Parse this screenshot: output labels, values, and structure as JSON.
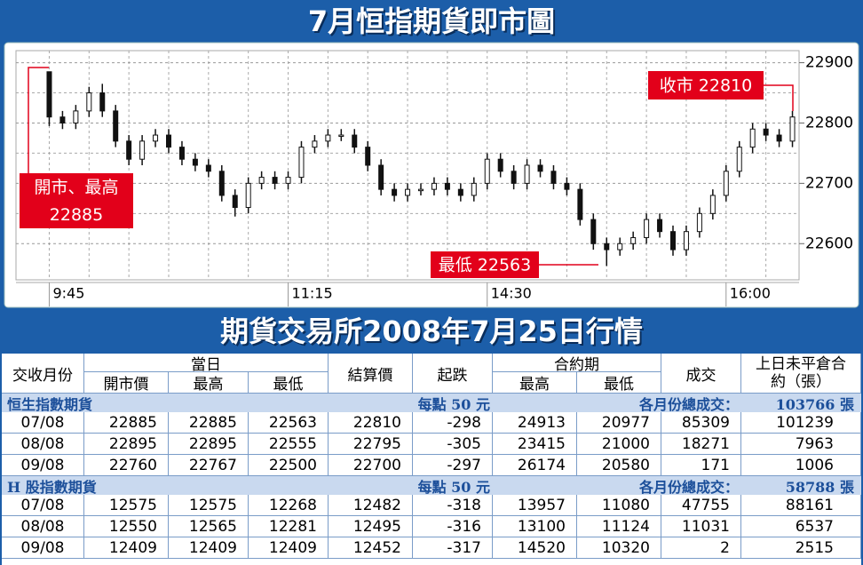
{
  "chart_data": {
    "type": "candlestick",
    "title": "7月恒指期貨即市圖",
    "categories": [
      "9:45",
      null,
      null,
      null,
      null,
      null,
      null,
      null,
      null,
      null,
      null,
      null,
      null,
      null,
      null,
      null,
      null,
      null,
      "11:15",
      null,
      null,
      null,
      null,
      null,
      null,
      null,
      null,
      null,
      null,
      null,
      null,
      null,
      null,
      "14:30",
      null,
      null,
      null,
      null,
      null,
      null,
      null,
      null,
      null,
      null,
      null,
      null,
      null,
      null,
      null,
      null,
      null,
      "16:00",
      null,
      null,
      null,
      null,
      null
    ],
    "open": [
      22885,
      22810,
      22800,
      22820,
      22850,
      22820,
      22770,
      22740,
      22770,
      22780,
      22760,
      22740,
      22730,
      22720,
      22680,
      22660,
      22700,
      22710,
      22700,
      22710,
      22760,
      22770,
      22780,
      22780,
      22760,
      22730,
      22690,
      22680,
      22690,
      22690,
      22700,
      22690,
      22680,
      22700,
      22740,
      22720,
      22700,
      22730,
      22720,
      22700,
      22690,
      22640,
      22600,
      22590,
      22600,
      22610,
      22640,
      22620,
      22590,
      22620,
      22650,
      22680,
      22720,
      22760,
      22790,
      22780,
      22770
    ],
    "high": [
      22885,
      22820,
      22830,
      22860,
      22865,
      22830,
      22780,
      22780,
      22790,
      22790,
      22770,
      22750,
      22740,
      22730,
      22690,
      22710,
      22720,
      22720,
      22720,
      22770,
      22780,
      22790,
      22790,
      22790,
      22770,
      22740,
      22700,
      22700,
      22700,
      22710,
      22710,
      22700,
      22710,
      22750,
      22750,
      22730,
      22740,
      22740,
      22730,
      22710,
      22700,
      22650,
      22610,
      22610,
      22620,
      22650,
      22650,
      22630,
      22630,
      22660,
      22690,
      22730,
      22770,
      22800,
      22800,
      22790,
      22820
    ],
    "low": [
      22795,
      22790,
      22790,
      22810,
      22810,
      22760,
      22730,
      22730,
      22760,
      22750,
      22730,
      22720,
      22710,
      22670,
      22645,
      22650,
      22690,
      22690,
      22690,
      22700,
      22750,
      22760,
      22770,
      22750,
      22720,
      22680,
      22670,
      22670,
      22680,
      22680,
      22680,
      22670,
      22670,
      22690,
      22710,
      22690,
      22690,
      22710,
      22690,
      22680,
      22630,
      22590,
      22563,
      22580,
      22590,
      22600,
      22610,
      22580,
      22580,
      22610,
      22640,
      22670,
      22710,
      22750,
      22770,
      22760,
      22760
    ],
    "close": [
      22810,
      22800,
      22820,
      22850,
      22820,
      22770,
      22740,
      22770,
      22780,
      22760,
      22740,
      22730,
      22720,
      22680,
      22660,
      22700,
      22710,
      22700,
      22710,
      22760,
      22770,
      22780,
      22780,
      22760,
      22730,
      22690,
      22680,
      22690,
      22690,
      22700,
      22690,
      22680,
      22700,
      22740,
      22720,
      22700,
      22730,
      22720,
      22700,
      22690,
      22640,
      22600,
      22590,
      22600,
      22610,
      22640,
      22620,
      22590,
      22620,
      22650,
      22680,
      22720,
      22760,
      22790,
      22780,
      22770,
      22810
    ],
    "color": "#111111",
    "ylim": [
      22540,
      22920
    ],
    "yticks": [
      22600,
      22700,
      22800,
      22900
    ],
    "minor_yticks": [
      22650,
      22750,
      22850
    ],
    "grid": true,
    "annotations": [
      {
        "text": [
          "開市、最高",
          "22885"
        ],
        "color": "#e2001a"
      },
      {
        "text": [
          "收市 22810"
        ],
        "color": "#e2001a"
      },
      {
        "text": [
          "最低 22563"
        ],
        "color": "#e2001a"
      }
    ]
  },
  "table": {
    "title": "期貨交易所2008年7月25日行情",
    "header": {
      "month": "交收月份",
      "day": "當日",
      "day_cols": [
        "開市價",
        "最高",
        "最低"
      ],
      "settle": "結算價",
      "change": "起跌",
      "contract": "合約期",
      "contract_cols": [
        "最高",
        "最低"
      ],
      "volume": "成交",
      "oi": "上日未平倉合約（張）"
    },
    "sections": [
      {
        "name": "恒生指數期貨",
        "note": "每點 50 元",
        "total_label": "各月份總成交：",
        "total": "103766 張",
        "rows": [
          [
            "07/08",
            "22885",
            "22885",
            "22563",
            "22810",
            "-298",
            "24913",
            "20977",
            "85309",
            "101239"
          ],
          [
            "08/08",
            "22895",
            "22895",
            "22555",
            "22795",
            "-305",
            "23415",
            "21000",
            "18271",
            "7963"
          ],
          [
            "09/08",
            "22760",
            "22767",
            "22500",
            "22700",
            "-297",
            "26174",
            "20580",
            "171",
            "1006"
          ]
        ]
      },
      {
        "name": "H 股指數期貨",
        "note": "每點 50 元",
        "total_label": "各月份總成交：",
        "total": "58788 張",
        "rows": [
          [
            "07/08",
            "12575",
            "12575",
            "12268",
            "12482",
            "-318",
            "13957",
            "11080",
            "47755",
            "88161"
          ],
          [
            "08/08",
            "12550",
            "12565",
            "12281",
            "12495",
            "-316",
            "13100",
            "11124",
            "11031",
            "6537"
          ],
          [
            "09/08",
            "12409",
            "12409",
            "12409",
            "12452",
            "-317",
            "14520",
            "10320",
            "2",
            "2515"
          ]
        ]
      }
    ]
  }
}
